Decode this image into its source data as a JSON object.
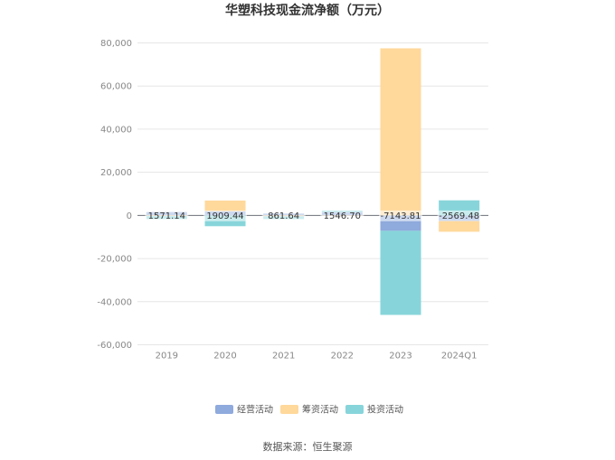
{
  "chart_data": {
    "type": "bar",
    "stacked": true,
    "title": "华塑科技现金流净额（万元）",
    "categories": [
      "2019",
      "2020",
      "2021",
      "2022",
      "2023",
      "2024Q1"
    ],
    "ylim": [
      -60000,
      80000
    ],
    "yticks": [
      80000,
      60000,
      40000,
      20000,
      0,
      -20000,
      -40000,
      -60000
    ],
    "ytick_labels": [
      "80,000",
      "60,000",
      "40,000",
      "20,000",
      "0",
      "-20,000",
      "-40,000",
      "-60,000"
    ],
    "grid": true,
    "legend_position": "bottom",
    "series": [
      {
        "name": "经营活动",
        "color": "#8faadc",
        "values": [
          1571.14,
          1909.44,
          861.64,
          1546.7,
          -7143.81,
          -2569.48
        ]
      },
      {
        "name": "筹资活动",
        "color": "#ffd89b",
        "values": [
          -300,
          5000,
          -400,
          -200,
          77500,
          -5000
        ]
      },
      {
        "name": "投资活动",
        "color": "#87d5da",
        "values": [
          -1400,
          -5000,
          -1300,
          700,
          -39000,
          7000
        ]
      }
    ],
    "data_labels": [
      "1571.14",
      "1909.44",
      "861.64",
      "1546.70",
      "-7143.81",
      "-2569.48"
    ]
  },
  "source_text": "数据来源：恒生聚源"
}
